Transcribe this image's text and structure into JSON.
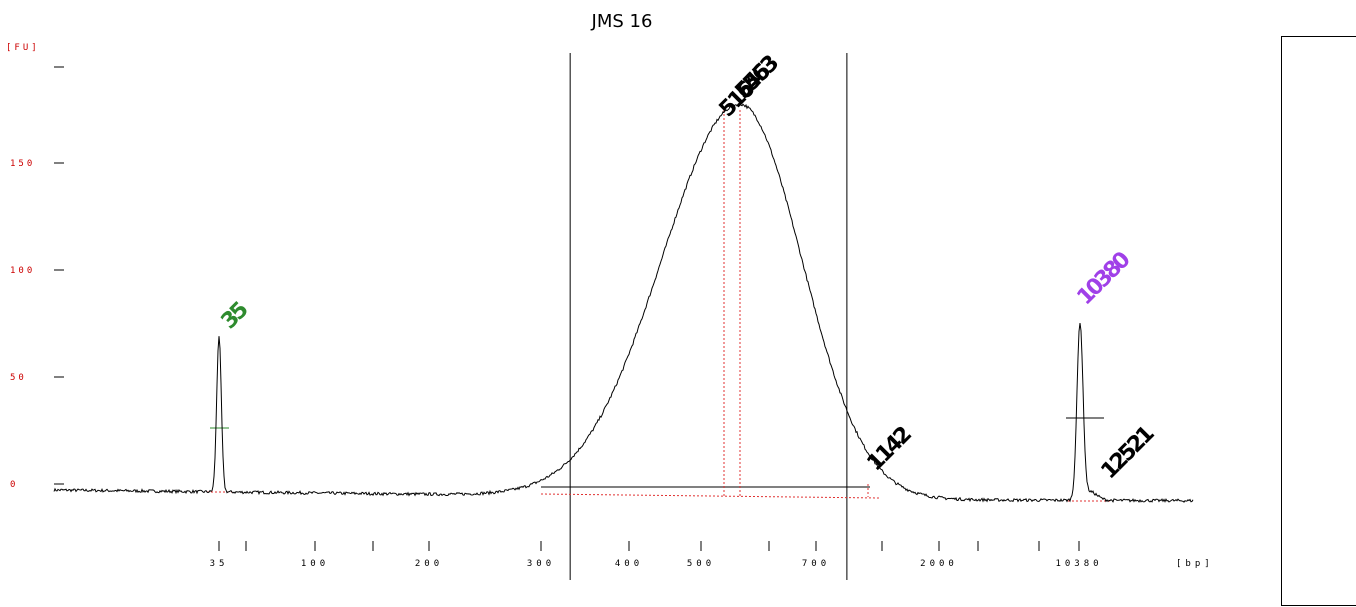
{
  "title": "JMS 16",
  "y_axis_label": "[FU]",
  "x_axis_label": "[bp]",
  "colors": {
    "trace": "#000000",
    "marker": "#2e8b2e",
    "upper_marker": "#a040e8",
    "axis_tick_text": "#cc0000",
    "baseline": "#e03030"
  },
  "chart_data": {
    "type": "line",
    "title": "JMS 16",
    "ylabel": "[FU]",
    "xlabel": "[bp]",
    "ylim": [
      -20,
      200
    ],
    "y_ticks": [
      "0",
      "50",
      "100",
      "150"
    ],
    "x_ticks": [
      "35",
      "100",
      "200",
      "300",
      "400",
      "500",
      "700",
      "2000",
      "10380"
    ],
    "x_ticks_positions_bp": [
      35,
      60,
      100,
      150,
      200,
      300,
      400,
      500,
      600,
      700,
      1500,
      2000,
      4000,
      7000,
      10380
    ],
    "region_bounds_bp": [
      330,
      1000
    ],
    "peaks": [
      {
        "label": "35",
        "bp": 35,
        "fu": 71,
        "color": "#2e8b2e"
      },
      {
        "label": "516",
        "bp": 516,
        "fu": 180,
        "color": "#000000"
      },
      {
        "label": "545",
        "bp": 545,
        "fu": 181,
        "color": "#000000"
      },
      {
        "label": "563",
        "bp": 563,
        "fu": 181,
        "color": "#000000"
      },
      {
        "label": "1142",
        "bp": 1142,
        "fu": 2,
        "color": "#000000"
      },
      {
        "label": "10380",
        "bp": 10380,
        "fu": 80,
        "color": "#a040e8"
      },
      {
        "label": "12521",
        "bp": 12521,
        "fu": 5,
        "color": "#000000"
      }
    ]
  }
}
